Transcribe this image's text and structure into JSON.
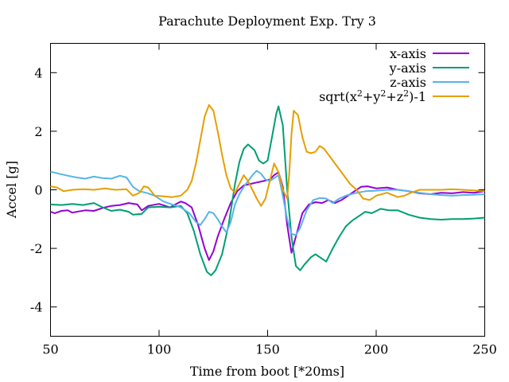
{
  "chart_data": {
    "type": "line",
    "title": "Parachute Deployment Exp. Try 3",
    "xlabel": "Time from boot [*20ms]",
    "ylabel": "Accel [g]",
    "xlim": [
      50,
      250
    ],
    "ylim": [
      -5,
      5
    ],
    "xticks": [
      50,
      100,
      150,
      200,
      250
    ],
    "yticks": [
      -4,
      -2,
      0,
      2,
      4
    ],
    "xtick_labels": [
      "50",
      "100",
      "150",
      "200",
      "250"
    ],
    "ytick_labels": [
      "-4",
      "-2",
      "0",
      "2",
      "4"
    ],
    "grid": false,
    "legend_position": "top-right",
    "series": [
      {
        "name": "x-axis",
        "color": "#9400d3",
        "points": [
          [
            50,
            -0.75
          ],
          [
            52,
            -0.8
          ],
          [
            55,
            -0.72
          ],
          [
            58,
            -0.7
          ],
          [
            60,
            -0.78
          ],
          [
            63,
            -0.74
          ],
          [
            66,
            -0.7
          ],
          [
            70,
            -0.72
          ],
          [
            74,
            -0.62
          ],
          [
            78,
            -0.55
          ],
          [
            82,
            -0.52
          ],
          [
            86,
            -0.45
          ],
          [
            90,
            -0.5
          ],
          [
            92,
            -0.7
          ],
          [
            95,
            -0.55
          ],
          [
            100,
            -0.48
          ],
          [
            105,
            -0.6
          ],
          [
            110,
            -0.4
          ],
          [
            112,
            -0.45
          ],
          [
            115,
            -0.6
          ],
          [
            118,
            -1.2
          ],
          [
            121,
            -2.0
          ],
          [
            123,
            -2.4
          ],
          [
            125,
            -2.1
          ],
          [
            127,
            -1.6
          ],
          [
            130,
            -1.0
          ],
          [
            133,
            -0.45
          ],
          [
            136,
            -0.05
          ],
          [
            139,
            0.15
          ],
          [
            142,
            0.2
          ],
          [
            145,
            0.25
          ],
          [
            148,
            0.3
          ],
          [
            151,
            0.35
          ],
          [
            153,
            0.5
          ],
          [
            155,
            0.6
          ],
          [
            157,
            0.1
          ],
          [
            159,
            -1.2
          ],
          [
            161,
            -2.15
          ],
          [
            163,
            -1.6
          ],
          [
            166,
            -0.8
          ],
          [
            169,
            -0.5
          ],
          [
            172,
            -0.42
          ],
          [
            175,
            -0.45
          ],
          [
            178,
            -0.35
          ],
          [
            181,
            -0.45
          ],
          [
            184,
            -0.35
          ],
          [
            187,
            -0.2
          ],
          [
            190,
            -0.05
          ],
          [
            193,
            0.1
          ],
          [
            196,
            0.12
          ],
          [
            200,
            0.05
          ],
          [
            205,
            0.08
          ],
          [
            210,
            0.0
          ],
          [
            215,
            -0.05
          ],
          [
            220,
            -0.12
          ],
          [
            225,
            -0.15
          ],
          [
            230,
            -0.1
          ],
          [
            235,
            -0.12
          ],
          [
            240,
            -0.08
          ],
          [
            245,
            -0.1
          ],
          [
            250,
            -0.05
          ]
        ]
      },
      {
        "name": "y-axis",
        "color": "#009e73",
        "points": [
          [
            50,
            -0.5
          ],
          [
            55,
            -0.52
          ],
          [
            60,
            -0.48
          ],
          [
            65,
            -0.52
          ],
          [
            70,
            -0.45
          ],
          [
            74,
            -0.6
          ],
          [
            78,
            -0.72
          ],
          [
            82,
            -0.68
          ],
          [
            86,
            -0.75
          ],
          [
            88,
            -0.85
          ],
          [
            92,
            -0.82
          ],
          [
            95,
            -0.6
          ],
          [
            100,
            -0.58
          ],
          [
            105,
            -0.6
          ],
          [
            110,
            -0.55
          ],
          [
            113,
            -0.8
          ],
          [
            116,
            -1.4
          ],
          [
            119,
            -2.2
          ],
          [
            122,
            -2.8
          ],
          [
            124,
            -2.92
          ],
          [
            126,
            -2.75
          ],
          [
            129,
            -2.2
          ],
          [
            132,
            -1.2
          ],
          [
            135,
            0.2
          ],
          [
            137,
            0.95
          ],
          [
            139,
            1.4
          ],
          [
            141,
            1.55
          ],
          [
            144,
            1.35
          ],
          [
            146,
            1.0
          ],
          [
            148,
            0.9
          ],
          [
            150,
            1.0
          ],
          [
            152,
            1.8
          ],
          [
            154,
            2.6
          ],
          [
            155,
            2.85
          ],
          [
            157,
            2.2
          ],
          [
            159,
            0.0
          ],
          [
            161,
            -1.6
          ],
          [
            163,
            -2.6
          ],
          [
            165,
            -2.75
          ],
          [
            167,
            -2.55
          ],
          [
            170,
            -2.3
          ],
          [
            172,
            -2.2
          ],
          [
            174,
            -2.3
          ],
          [
            177,
            -2.45
          ],
          [
            180,
            -2.0
          ],
          [
            183,
            -1.6
          ],
          [
            186,
            -1.25
          ],
          [
            189,
            -1.05
          ],
          [
            192,
            -0.9
          ],
          [
            195,
            -0.75
          ],
          [
            198,
            -0.8
          ],
          [
            202,
            -0.65
          ],
          [
            206,
            -0.7
          ],
          [
            210,
            -0.7
          ],
          [
            215,
            -0.85
          ],
          [
            220,
            -0.95
          ],
          [
            225,
            -1.0
          ],
          [
            230,
            -1.02
          ],
          [
            235,
            -1.0
          ],
          [
            240,
            -1.0
          ],
          [
            245,
            -0.98
          ],
          [
            250,
            -0.95
          ]
        ]
      },
      {
        "name": "z-axis",
        "color": "#56b4e9",
        "points": [
          [
            50,
            0.62
          ],
          [
            54,
            0.55
          ],
          [
            58,
            0.48
          ],
          [
            62,
            0.42
          ],
          [
            66,
            0.38
          ],
          [
            70,
            0.45
          ],
          [
            74,
            0.4
          ],
          [
            78,
            0.38
          ],
          [
            82,
            0.48
          ],
          [
            85,
            0.42
          ],
          [
            88,
            0.1
          ],
          [
            91,
            -0.05
          ],
          [
            94,
            -0.1
          ],
          [
            98,
            -0.2
          ],
          [
            102,
            -0.4
          ],
          [
            106,
            -0.5
          ],
          [
            110,
            -0.6
          ],
          [
            114,
            -0.8
          ],
          [
            117,
            -1.1
          ],
          [
            119,
            -1.2
          ],
          [
            121,
            -1.0
          ],
          [
            123,
            -0.75
          ],
          [
            125,
            -0.8
          ],
          [
            127,
            -1.0
          ],
          [
            129,
            -1.25
          ],
          [
            131,
            -1.45
          ],
          [
            133,
            -1.1
          ],
          [
            135,
            -0.5
          ],
          [
            137,
            -0.15
          ],
          [
            139,
            0.1
          ],
          [
            141,
            0.3
          ],
          [
            143,
            0.5
          ],
          [
            145,
            0.65
          ],
          [
            147,
            0.55
          ],
          [
            149,
            0.35
          ],
          [
            151,
            0.3
          ],
          [
            153,
            0.4
          ],
          [
            155,
            0.5
          ],
          [
            157,
            -0.2
          ],
          [
            159,
            -1.0
          ],
          [
            161,
            -1.5
          ],
          [
            163,
            -1.55
          ],
          [
            165,
            -1.3
          ],
          [
            168,
            -0.7
          ],
          [
            171,
            -0.35
          ],
          [
            174,
            -0.28
          ],
          [
            177,
            -0.3
          ],
          [
            180,
            -0.45
          ],
          [
            183,
            -0.3
          ],
          [
            186,
            -0.2
          ],
          [
            190,
            -0.12
          ],
          [
            195,
            -0.05
          ],
          [
            200,
            -0.03
          ],
          [
            205,
            0.0
          ],
          [
            210,
            0.0
          ],
          [
            215,
            -0.05
          ],
          [
            220,
            -0.1
          ],
          [
            225,
            -0.15
          ],
          [
            230,
            -0.18
          ],
          [
            235,
            -0.2
          ],
          [
            240,
            -0.18
          ],
          [
            245,
            -0.17
          ],
          [
            250,
            -0.15
          ]
        ]
      },
      {
        "name": "sqrt(x^2+y^2+z^2)-1",
        "color": "#e69f00",
        "points": [
          [
            50,
            0.12
          ],
          [
            53,
            0.08
          ],
          [
            56,
            -0.05
          ],
          [
            60,
            0.0
          ],
          [
            65,
            0.02
          ],
          [
            70,
            0.0
          ],
          [
            75,
            0.05
          ],
          [
            80,
            0.0
          ],
          [
            85,
            0.02
          ],
          [
            88,
            -0.2
          ],
          [
            91,
            -0.1
          ],
          [
            93,
            0.12
          ],
          [
            95,
            0.08
          ],
          [
            98,
            -0.2
          ],
          [
            102,
            -0.22
          ],
          [
            106,
            -0.25
          ],
          [
            110,
            -0.2
          ],
          [
            113,
            0.0
          ],
          [
            115,
            0.3
          ],
          [
            117,
            0.9
          ],
          [
            119,
            1.7
          ],
          [
            121,
            2.5
          ],
          [
            123,
            2.9
          ],
          [
            125,
            2.7
          ],
          [
            127,
            2.0
          ],
          [
            129,
            1.2
          ],
          [
            131,
            0.5
          ],
          [
            133,
            0.05
          ],
          [
            135,
            -0.1
          ],
          [
            137,
            0.2
          ],
          [
            139,
            0.5
          ],
          [
            141,
            0.3
          ],
          [
            143,
            0.0
          ],
          [
            145,
            -0.3
          ],
          [
            147,
            -0.55
          ],
          [
            149,
            -0.3
          ],
          [
            151,
            0.3
          ],
          [
            153,
            0.9
          ],
          [
            155,
            0.6
          ],
          [
            157,
            0.0
          ],
          [
            159,
            -0.3
          ],
          [
            160,
            0.6
          ],
          [
            161,
            1.9
          ],
          [
            162,
            2.7
          ],
          [
            164,
            2.55
          ],
          [
            166,
            1.8
          ],
          [
            168,
            1.3
          ],
          [
            170,
            1.25
          ],
          [
            172,
            1.3
          ],
          [
            174,
            1.5
          ],
          [
            176,
            1.4
          ],
          [
            179,
            1.1
          ],
          [
            182,
            0.8
          ],
          [
            185,
            0.5
          ],
          [
            188,
            0.2
          ],
          [
            191,
            0.0
          ],
          [
            194,
            -0.3
          ],
          [
            197,
            -0.35
          ],
          [
            200,
            -0.2
          ],
          [
            205,
            -0.1
          ],
          [
            210,
            -0.25
          ],
          [
            213,
            -0.2
          ],
          [
            216,
            -0.1
          ],
          [
            220,
            0.0
          ],
          [
            225,
            0.0
          ],
          [
            230,
            0.0
          ],
          [
            235,
            0.02
          ],
          [
            240,
            0.0
          ],
          [
            245,
            -0.02
          ],
          [
            250,
            -0.05
          ]
        ]
      }
    ]
  },
  "legend": {
    "labels": [
      "x-axis",
      "y-axis",
      "z-axis"
    ],
    "magnitude_label": {
      "prefix": "sqrt(x",
      "exp1": "2",
      "mid1": "+y",
      "exp2": "2",
      "mid2": "+z",
      "exp3": "2",
      "suffix": ")-1"
    }
  }
}
